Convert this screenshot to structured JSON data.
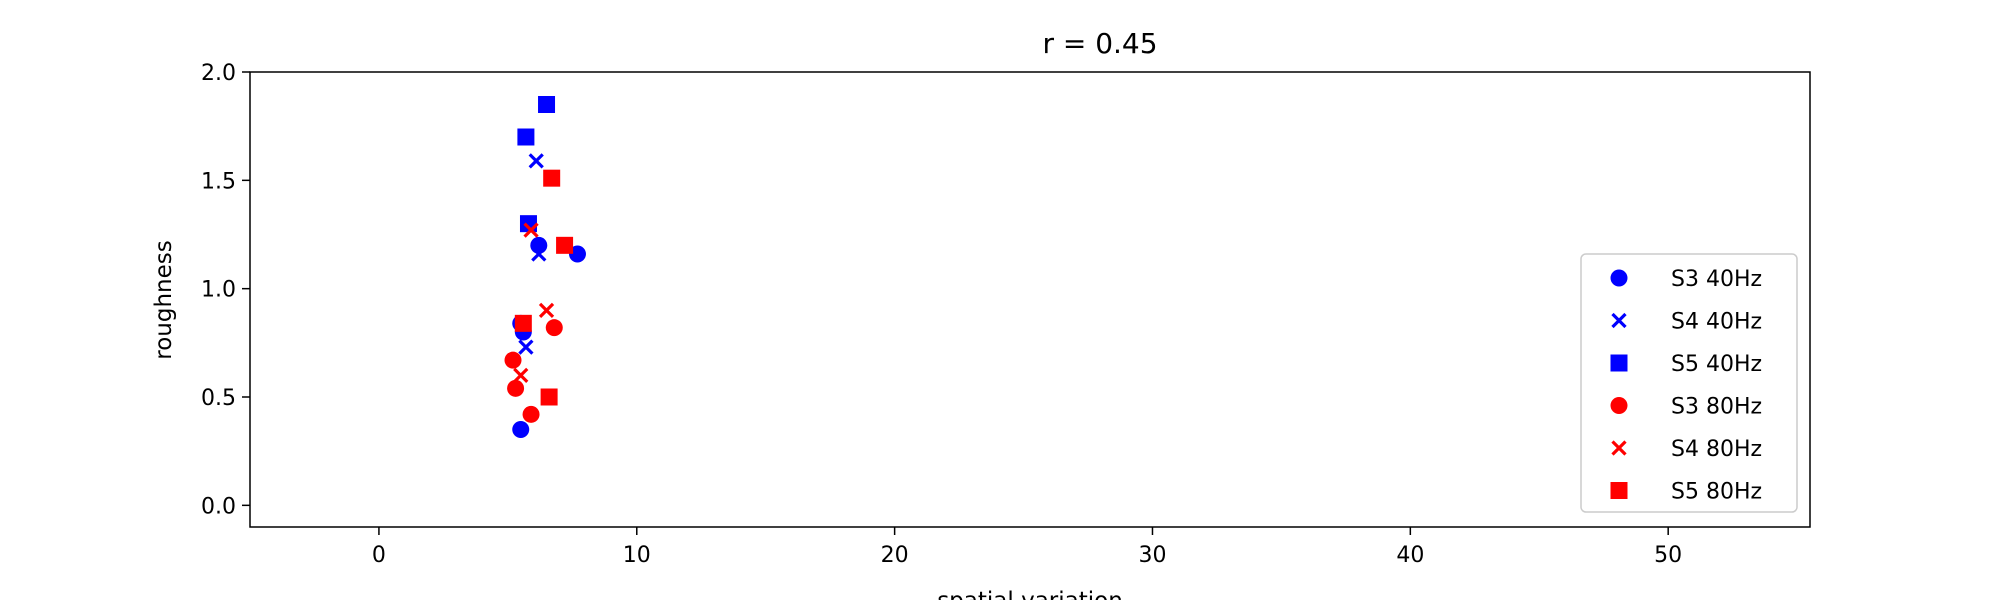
{
  "chart_data": {
    "type": "scatter",
    "title": "r = 0.45",
    "xlabel": "spatial variation",
    "ylabel": "roughness",
    "xlim": [
      -5,
      55.5
    ],
    "ylim": [
      -0.1,
      2.0
    ],
    "xticks": [
      0,
      10,
      20,
      30,
      40,
      50
    ],
    "yticks": [
      0.0,
      0.5,
      1.0,
      1.5,
      2.0
    ],
    "ytick_labels": [
      "0.0",
      "0.5",
      "1.0",
      "1.5",
      "2.0"
    ],
    "grid": false,
    "legend_position": "lower-right",
    "series": [
      {
        "name": "S3 40Hz",
        "marker": "circle",
        "color": "#0000ff",
        "points": [
          [
            5.5,
            0.35
          ],
          [
            5.6,
            0.8
          ],
          [
            5.5,
            0.84
          ],
          [
            6.2,
            1.2
          ],
          [
            7.7,
            1.16
          ]
        ]
      },
      {
        "name": "S4 40Hz",
        "marker": "x",
        "color": "#0000ff",
        "points": [
          [
            5.7,
            0.73
          ],
          [
            6.2,
            1.16
          ],
          [
            6.1,
            1.59
          ]
        ]
      },
      {
        "name": "S5 40Hz",
        "marker": "square",
        "color": "#0000ff",
        "points": [
          [
            5.8,
            1.3
          ],
          [
            5.7,
            1.7
          ],
          [
            6.5,
            1.85
          ]
        ]
      },
      {
        "name": "S3 80Hz",
        "marker": "circle",
        "color": "#ff0000",
        "points": [
          [
            5.2,
            0.67
          ],
          [
            5.3,
            0.54
          ],
          [
            5.9,
            0.42
          ],
          [
            6.8,
            0.82
          ]
        ]
      },
      {
        "name": "S4 80Hz",
        "marker": "x",
        "color": "#ff0000",
        "points": [
          [
            5.5,
            0.6
          ],
          [
            5.9,
            1.27
          ],
          [
            6.5,
            0.9
          ]
        ]
      },
      {
        "name": "S5 80Hz",
        "marker": "square",
        "color": "#ff0000",
        "points": [
          [
            5.6,
            0.84
          ],
          [
            6.6,
            0.5
          ],
          [
            6.7,
            1.51
          ],
          [
            7.2,
            1.2
          ]
        ]
      }
    ]
  }
}
